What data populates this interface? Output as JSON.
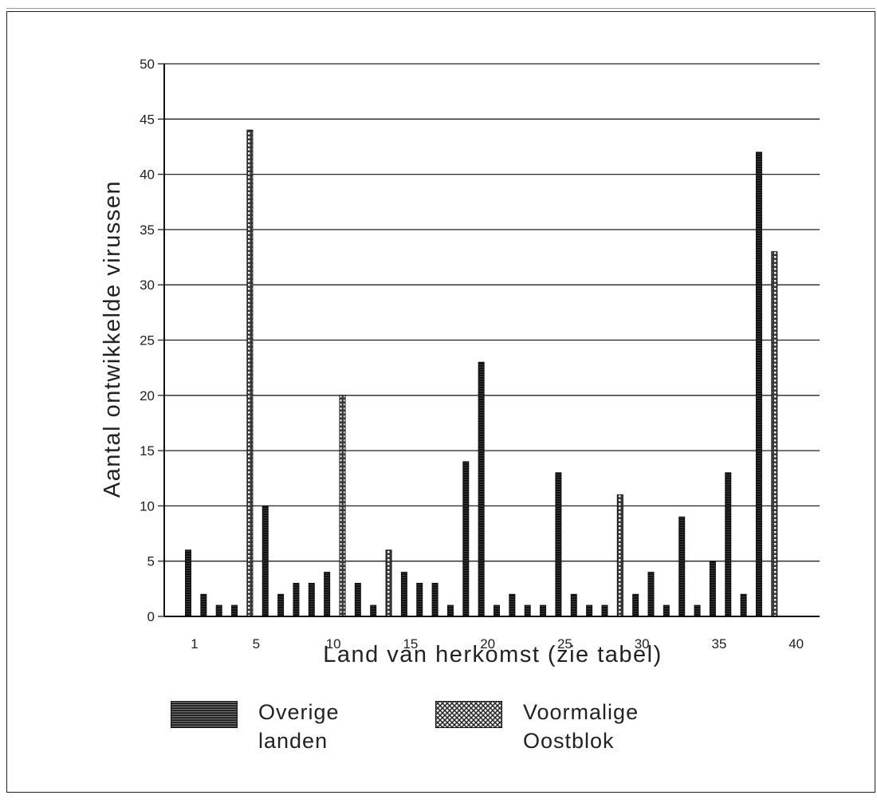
{
  "chart_data": {
    "type": "bar",
    "xlabel": "Land van herkomst (zie tabel)",
    "ylabel": "Aantal ontwikkelde virussen",
    "ylim": [
      0,
      50
    ],
    "yticks": [
      0,
      5,
      10,
      15,
      20,
      25,
      30,
      35,
      40,
      45,
      50
    ],
    "xticks": [
      1,
      5,
      10,
      15,
      20,
      25,
      30,
      35,
      40
    ],
    "grid": true,
    "legend_position": "bottom",
    "categories": [
      1,
      2,
      3,
      4,
      5,
      6,
      7,
      8,
      9,
      10,
      11,
      12,
      13,
      14,
      15,
      16,
      17,
      18,
      19,
      20,
      21,
      22,
      23,
      24,
      25,
      26,
      27,
      28,
      29,
      30,
      31,
      32,
      33,
      34,
      35,
      36,
      37,
      38,
      39,
      40
    ],
    "values": [
      6,
      2,
      1,
      1,
      44,
      10,
      2,
      3,
      3,
      4,
      20,
      3,
      1,
      6,
      4,
      3,
      3,
      1,
      14,
      23,
      1,
      2,
      1,
      1,
      13,
      2,
      1,
      1,
      11,
      2,
      4,
      1,
      9,
      1,
      5,
      13,
      2,
      42,
      33,
      0
    ],
    "groups": [
      "overige",
      "overige",
      "overige",
      "overige",
      "oostblok",
      "overige",
      "overige",
      "overige",
      "overige",
      "overige",
      "oostblok",
      "overige",
      "overige",
      "oostblok",
      "overige",
      "overige",
      "overige",
      "overige",
      "overige",
      "overige",
      "overige",
      "overige",
      "overige",
      "overige",
      "overige",
      "overige",
      "overige",
      "overige",
      "oostblok",
      "overige",
      "overige",
      "overige",
      "overige",
      "overige",
      "overige",
      "overige",
      "overige",
      "overige",
      "oostblok",
      "overige"
    ],
    "series": [
      {
        "key": "overige",
        "name": "Overige landen",
        "label_lines": [
          "Overige",
          "landen"
        ],
        "color": "#1a1a1a"
      },
      {
        "key": "oostblok",
        "name": "Voormalige Oostblok",
        "label_lines": [
          "Voormalige",
          "Oostblok"
        ],
        "color": "#555555"
      }
    ]
  }
}
